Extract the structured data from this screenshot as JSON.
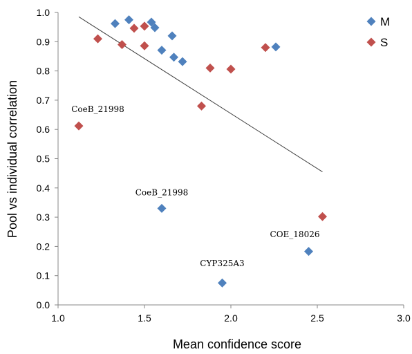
{
  "chart_data": {
    "type": "scatter",
    "xlabel": "Mean confidence score",
    "ylabel": "Pool vs individual correlation",
    "xlim": [
      1.0,
      3.0
    ],
    "ylim": [
      0.0,
      1.0
    ],
    "xticks": [
      "1.0",
      "1.5",
      "2.0",
      "2.5",
      "3.0"
    ],
    "yticks": [
      "0.0",
      "0.1",
      "0.2",
      "0.3",
      "0.4",
      "0.5",
      "0.6",
      "0.7",
      "0.8",
      "0.9",
      "1.0"
    ],
    "grid": false,
    "legend_position": "top-right",
    "series": [
      {
        "name": "M",
        "color": "#4F81BD",
        "marker": "diamond",
        "points": [
          {
            "x": 1.33,
            "y": 0.962
          },
          {
            "x": 1.41,
            "y": 0.975
          },
          {
            "x": 1.54,
            "y": 0.967
          },
          {
            "x": 1.56,
            "y": 0.948
          },
          {
            "x": 1.66,
            "y": 0.92
          },
          {
            "x": 1.6,
            "y": 0.871
          },
          {
            "x": 1.67,
            "y": 0.847
          },
          {
            "x": 1.72,
            "y": 0.832
          },
          {
            "x": 2.26,
            "y": 0.882
          },
          {
            "x": 1.6,
            "y": 0.33
          },
          {
            "x": 2.45,
            "y": 0.183
          },
          {
            "x": 1.95,
            "y": 0.075
          }
        ]
      },
      {
        "name": "S",
        "color": "#C0504D",
        "marker": "diamond",
        "points": [
          {
            "x": 1.23,
            "y": 0.91
          },
          {
            "x": 1.37,
            "y": 0.89
          },
          {
            "x": 1.44,
            "y": 0.946
          },
          {
            "x": 1.5,
            "y": 0.953
          },
          {
            "x": 1.5,
            "y": 0.886
          },
          {
            "x": 1.88,
            "y": 0.81
          },
          {
            "x": 2.0,
            "y": 0.806
          },
          {
            "x": 2.2,
            "y": 0.88
          },
          {
            "x": 1.83,
            "y": 0.68
          },
          {
            "x": 1.12,
            "y": 0.612
          },
          {
            "x": 2.53,
            "y": 0.302
          }
        ]
      }
    ],
    "trendline": {
      "color": "#404040",
      "from": {
        "x": 1.12,
        "y": 0.985
      },
      "to": {
        "x": 2.53,
        "y": 0.455
      }
    },
    "annotations": [
      {
        "text": "CoeB_21998",
        "x": 1.23,
        "y": 0.66
      },
      {
        "text": "CoeB_21998",
        "x": 1.6,
        "y": 0.375
      },
      {
        "text": "COE_18026",
        "x": 2.37,
        "y": 0.232
      },
      {
        "text": "CYP325A3",
        "x": 1.95,
        "y": 0.132
      }
    ]
  }
}
